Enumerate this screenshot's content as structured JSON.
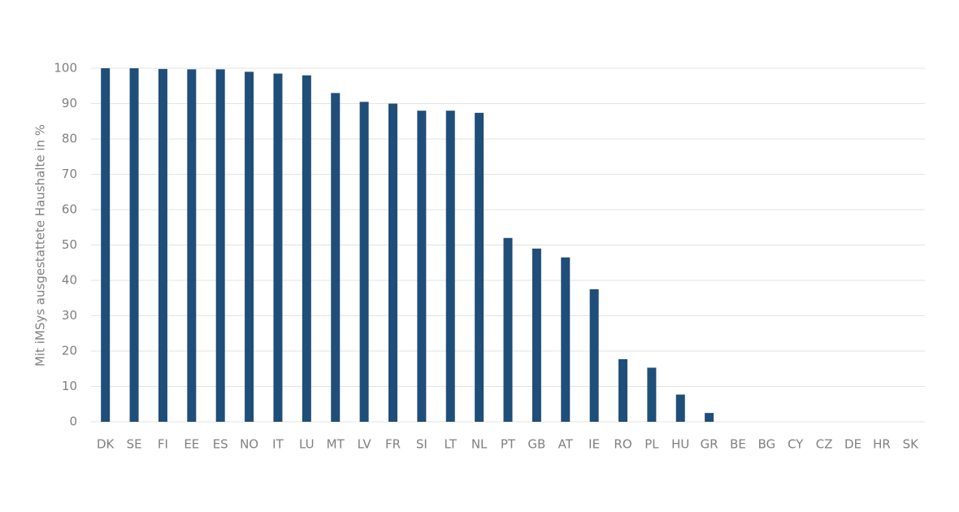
{
  "chart_data": {
    "type": "bar",
    "y_label": "Mit iMSys ausgestattete Haushalte in %",
    "categories": [
      "DK",
      "SE",
      "FI",
      "EE",
      "ES",
      "NO",
      "IT",
      "LU",
      "MT",
      "LV",
      "FR",
      "SI",
      "LT",
      "NL",
      "PT",
      "GB",
      "AT",
      "IE",
      "RO",
      "PL",
      "HU",
      "GR",
      "BE",
      "BG",
      "CY",
      "CZ",
      "DE",
      "HR",
      "SK"
    ],
    "values": [
      100,
      100,
      99.8,
      99.7,
      99.7,
      99,
      98.5,
      98,
      93,
      90.5,
      90,
      88,
      88,
      87.4,
      52,
      49,
      46.5,
      37.5,
      17.7,
      15.3,
      7.7,
      2.5,
      0,
      0,
      0,
      0,
      0,
      0,
      0
    ],
    "color": "#1f4e79",
    "ylim": [
      0,
      100
    ],
    "yticks": [
      0,
      10,
      20,
      30,
      40,
      50,
      60,
      70,
      80,
      90,
      100
    ],
    "grid": true
  }
}
